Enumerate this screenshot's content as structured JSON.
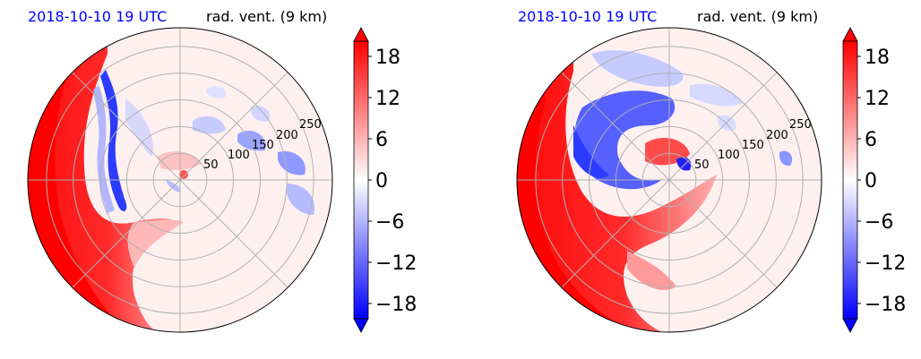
{
  "chart_data": [
    {
      "type": "polar-contour",
      "title_left": "2018-10-10 19 UTC",
      "title_right": "rad. vent. (9 km)",
      "title_left_color": "#0000ff",
      "radial_ticks": [
        "50",
        "100",
        "150",
        "200",
        "250"
      ],
      "rlim": [
        0,
        285
      ],
      "colorbar": {
        "ticks": [
          "18",
          "12",
          "6",
          "0",
          "−6",
          "−12",
          "−18"
        ],
        "tick_values": [
          18,
          12,
          6,
          0,
          -6,
          -12,
          -18
        ],
        "vmin": -20,
        "vmax": 20,
        "cmap": "bwr",
        "extend": "both"
      }
    },
    {
      "type": "polar-contour",
      "title_left": "2018-10-10 19 UTC",
      "title_right": "rad. vent. (9 km)",
      "title_left_color": "#0000ff",
      "radial_ticks": [
        "50",
        "100",
        "150",
        "200",
        "250"
      ],
      "rlim": [
        0,
        285
      ],
      "colorbar": {
        "ticks": [
          "18",
          "12",
          "6",
          "0",
          "−6",
          "−12",
          "−18"
        ],
        "tick_values": [
          18,
          12,
          6,
          0,
          -6,
          -12,
          -18
        ],
        "vmin": -20,
        "vmax": 20,
        "cmap": "bwr",
        "extend": "both"
      }
    }
  ]
}
